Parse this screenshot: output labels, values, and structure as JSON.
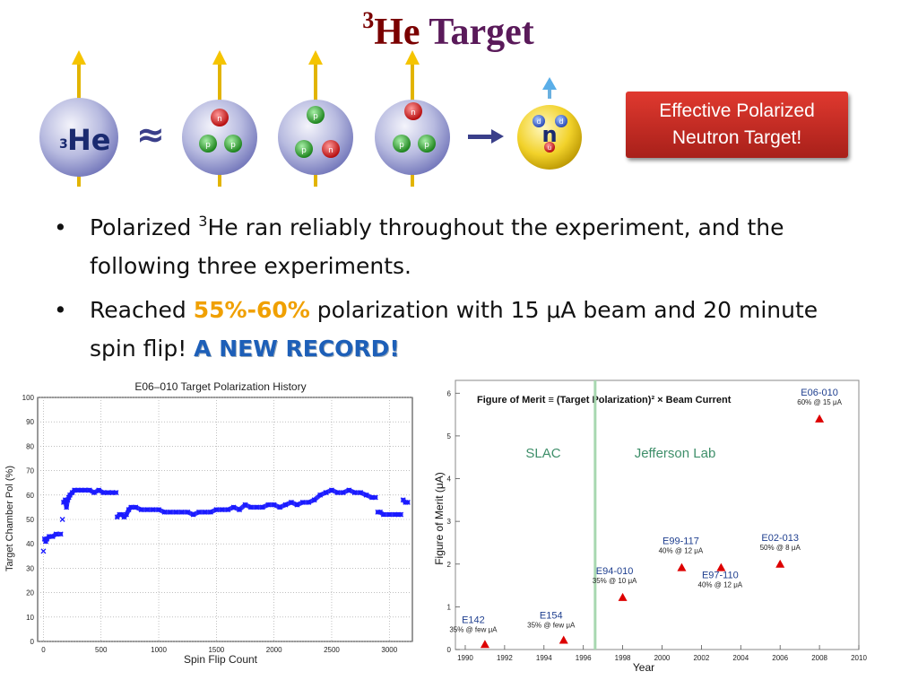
{
  "slide": {
    "title_sup": "3",
    "title_he": "He",
    "title_target": "Target"
  },
  "diagram": {
    "he3_sup": "3",
    "he3_text": "He",
    "approx": "≈",
    "neutron_label": "n",
    "nucleons": [
      [
        "n",
        "p",
        "p"
      ],
      [
        "p",
        "p",
        "n"
      ],
      [
        "n",
        "p",
        "p"
      ]
    ],
    "quarks": [
      "d",
      "d",
      "u"
    ]
  },
  "callout": {
    "line1": "Effective Polarized",
    "line2": "Neutron Target!"
  },
  "bullets": {
    "b1_pre": "Polarized ",
    "b1_sup": "3",
    "b1_post": "He ran reliably throughout the experiment, and the following three experiments.",
    "b2_pre": "Reached  ",
    "b2_hl": "55%-60%",
    "b2_mid": " polarization with 15 μA beam and 20 minute spin flip! ",
    "b2_record": "A NEW RECORD!"
  },
  "chart_data": [
    {
      "type": "scatter",
      "title": "E06–010 Target Polarization History",
      "xlabel": "Spin Flip Count",
      "ylabel": "Target Chamber Pol (%)",
      "xlim": [
        -50,
        3200
      ],
      "ylim": [
        0,
        100
      ],
      "xticks": [
        0,
        500,
        1000,
        1500,
        2000,
        2500,
        3000
      ],
      "yticks": [
        0,
        10,
        20,
        30,
        40,
        50,
        60,
        70,
        80,
        90,
        100
      ],
      "grid": true,
      "color": "#1a1aff",
      "series": [
        {
          "x": [
            0,
            10,
            20,
            30,
            50,
            80,
            110,
            150,
            165,
            175,
            190,
            200,
            210,
            220,
            230,
            250,
            270,
            300,
            330,
            360,
            400,
            440,
            480,
            520,
            560,
            600,
            630,
            640,
            660,
            680,
            700,
            720,
            740,
            760,
            800,
            850,
            900,
            950,
            1000,
            1050,
            1100,
            1150,
            1200,
            1250,
            1300,
            1350,
            1400,
            1450,
            1500,
            1550,
            1600,
            1650,
            1700,
            1750,
            1800,
            1850,
            1900,
            1950,
            2000,
            2050,
            2100,
            2150,
            2200,
            2250,
            2300,
            2350,
            2400,
            2450,
            2500,
            2550,
            2600,
            2650,
            2700,
            2750,
            2800,
            2850,
            2880,
            2900,
            2920,
            2950,
            3000,
            3050,
            3080,
            3100,
            3120,
            3140,
            3160
          ],
          "y": [
            37,
            42,
            41,
            42,
            43,
            43,
            44,
            44,
            50,
            57,
            58,
            55,
            58,
            59,
            60,
            61,
            62,
            62,
            62,
            62,
            62,
            61,
            62,
            61,
            61,
            61,
            61,
            51,
            52,
            52,
            51,
            52,
            54,
            55,
            55,
            54,
            54,
            54,
            54,
            53,
            53,
            53,
            53,
            53,
            52,
            53,
            53,
            53,
            54,
            54,
            54,
            55,
            54,
            56,
            55,
            55,
            55,
            56,
            56,
            55,
            56,
            57,
            56,
            57,
            57,
            58,
            60,
            61,
            62,
            61,
            61,
            62,
            61,
            61,
            60,
            59,
            59,
            53,
            53,
            52,
            52,
            52,
            52,
            52,
            58,
            57,
            57
          ]
        }
      ]
    },
    {
      "type": "scatter",
      "title": "Figure of Merit ≡ (Target Polarization)² × Beam Current",
      "xlabel": "Year",
      "ylabel": "Figure of Merit (μA)",
      "xlim": [
        1989.5,
        2010
      ],
      "ylim": [
        0,
        6.3
      ],
      "xticks": [
        1990,
        1992,
        1994,
        1996,
        1998,
        2000,
        2002,
        2004,
        2006,
        2008,
        2010
      ],
      "yticks": [
        0,
        1,
        2,
        3,
        4,
        5,
        6
      ],
      "divider_x": 1996.6,
      "regions": [
        "SLAC",
        "Jefferson Lab"
      ],
      "points": [
        {
          "x": 1991,
          "y": 0.12,
          "name": "E142",
          "note": "35% @ few μA"
        },
        {
          "x": 1995,
          "y": 0.22,
          "name": "E154",
          "note": "35% @ few μA"
        },
        {
          "x": 1998,
          "y": 1.22,
          "name": "E94-010",
          "note": "35% @ 10 μA"
        },
        {
          "x": 2001,
          "y": 1.92,
          "name": "E99-117",
          "note": "40% @ 12 μA"
        },
        {
          "x": 2003,
          "y": 1.92,
          "name": "E97-110",
          "note": "40% @ 12 μA"
        },
        {
          "x": 2006,
          "y": 2.0,
          "name": "E02-013",
          "note": "50% @ 8 μA"
        },
        {
          "x": 2008,
          "y": 5.4,
          "name": "E06-010",
          "note": "60% @ 15 μA"
        }
      ],
      "colors": {
        "marker": "#dd0000",
        "label": "#1f3f8f",
        "divider": "#a8d8b0"
      }
    }
  ]
}
